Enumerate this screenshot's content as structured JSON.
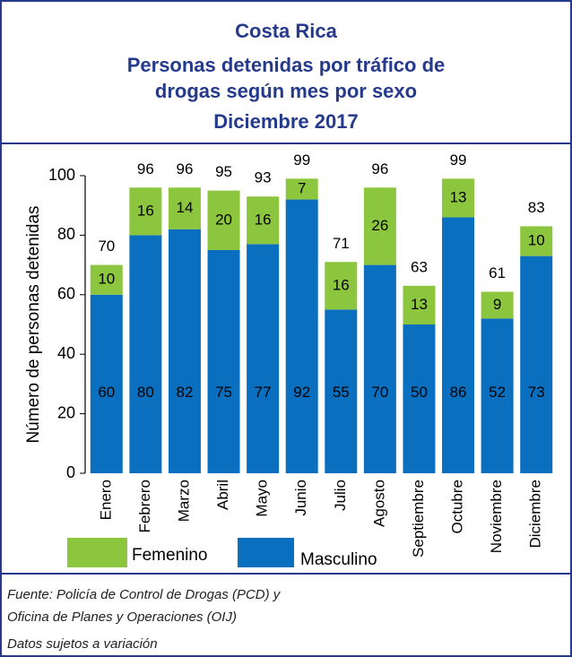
{
  "chart_data": {
    "type": "stacked_bar",
    "title_lines": [
      "Costa Rica",
      "Personas detenidas  por tráfico de",
      "drogas según mes por sexo",
      "Diciembre 2017"
    ],
    "ylabel": "Número de personas detenidas",
    "categories": [
      "Enero",
      "Febrero",
      "Marzo",
      "Abril",
      "Mayo",
      "Junio",
      "Julio",
      "Agosto",
      "Septiembre",
      "Octubre",
      "Noviembre",
      "Diciembre"
    ],
    "series": [
      {
        "name": "Masculino",
        "color": "#0a6fbf",
        "values": [
          60,
          80,
          82,
          75,
          77,
          92,
          55,
          70,
          50,
          86,
          52,
          73
        ]
      },
      {
        "name": "Femenino",
        "color": "#8cc63f",
        "values": [
          10,
          16,
          14,
          20,
          16,
          7,
          16,
          26,
          13,
          13,
          9,
          10
        ]
      }
    ],
    "totals": [
      70,
      96,
      96,
      95,
      93,
      99,
      71,
      96,
      63,
      99,
      61,
      83
    ],
    "ylim": [
      0,
      100
    ],
    "yticks": [
      0,
      20,
      40,
      60,
      80,
      100
    ],
    "notes": [
      "Fuente: Policía de Control de Drogas (PCD) y",
      "Oficina de Planes y Operaciones (OIJ)",
      "Datos sujetos a variación"
    ]
  }
}
